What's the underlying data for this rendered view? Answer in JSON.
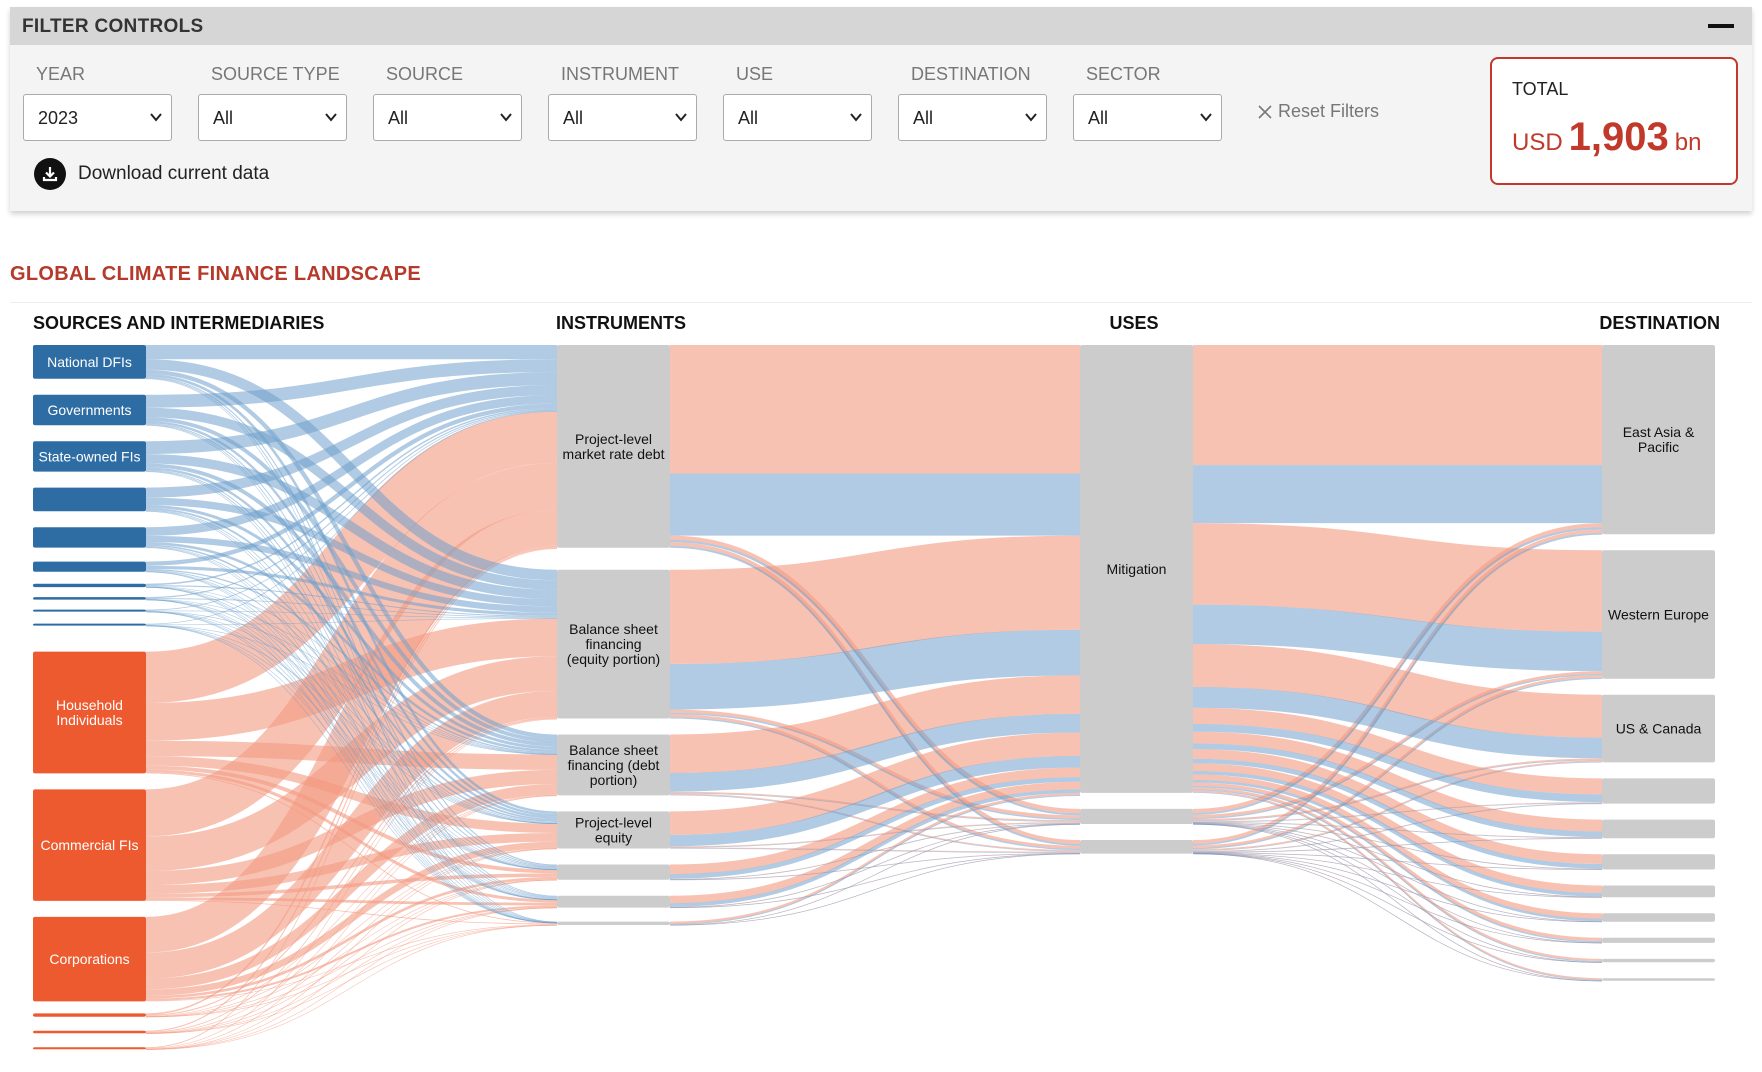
{
  "filters": {
    "header_title": "FILTER CONTROLS",
    "fields": [
      {
        "label": "YEAR",
        "value": "2023"
      },
      {
        "label": "SOURCE TYPE",
        "value": "All"
      },
      {
        "label": "SOURCE",
        "value": "All"
      },
      {
        "label": "INSTRUMENT",
        "value": "All"
      },
      {
        "label": "USE",
        "value": "All"
      },
      {
        "label": "DESTINATION",
        "value": "All"
      },
      {
        "label": "SECTOR",
        "value": "All"
      }
    ],
    "reset_label": "Reset Filters",
    "download_label": "Download current data"
  },
  "total": {
    "label": "TOTAL",
    "currency": "USD",
    "value": "1,903",
    "unit": "bn"
  },
  "chart_title": "GLOBAL CLIMATE FINANCE LANDSCAPE",
  "colors": {
    "public": "#2e6da4",
    "public_link": "#6fa0cc",
    "private": "#ee5a2f",
    "private_link": "#f49a80",
    "node": "#cccccc",
    "accent": "#c0392b"
  },
  "chart_data": {
    "type": "sankey",
    "columns": [
      {
        "title": "SOURCES AND INTERMEDIARIES"
      },
      {
        "title": "INSTRUMENTS"
      },
      {
        "title": "USES"
      },
      {
        "title": "DESTINATION"
      }
    ],
    "nodes": {
      "sources": [
        {
          "label": "National DFIs",
          "value": 20,
          "type": "public"
        },
        {
          "label": "Governments",
          "value": 18,
          "type": "public"
        },
        {
          "label": "State-owned FIs",
          "value": 18,
          "type": "public"
        },
        {
          "label": "",
          "value": 14,
          "type": "public"
        },
        {
          "label": "",
          "value": 12,
          "type": "public"
        },
        {
          "label": "",
          "value": 6,
          "type": "public"
        },
        {
          "label": "",
          "value": 2,
          "type": "public"
        },
        {
          "label": "",
          "value": 1.5,
          "type": "public"
        },
        {
          "label": "",
          "value": 1,
          "type": "public"
        },
        {
          "label": "",
          "value": 0.6,
          "type": "public"
        },
        {
          "label": "Household Individuals",
          "value": 72,
          "type": "private"
        },
        {
          "label": "Commercial FIs",
          "value": 66,
          "type": "private"
        },
        {
          "label": "Corporations",
          "value": 50,
          "type": "private"
        },
        {
          "label": "",
          "value": 2,
          "type": "private"
        },
        {
          "label": "",
          "value": 1.5,
          "type": "private"
        },
        {
          "label": "",
          "value": 1,
          "type": "private"
        }
      ],
      "instruments": [
        {
          "label": "Project-level market rate debt",
          "value": 120
        },
        {
          "label": "Balance sheet financing (equity portion)",
          "value": 88
        },
        {
          "label": "Balance sheet financing (debt portion)",
          "value": 36
        },
        {
          "label": "Project-level equity",
          "value": 22
        },
        {
          "label": "",
          "value": 9
        },
        {
          "label": "",
          "value": 7
        },
        {
          "label": "",
          "value": 2
        }
      ],
      "uses": [
        {
          "label": "Mitigation",
          "value": 265
        },
        {
          "label": "",
          "value": 9
        },
        {
          "label": "",
          "value": 8
        }
      ],
      "destinations": [
        {
          "label": "East Asia & Pacific",
          "value": 112
        },
        {
          "label": "Western Europe",
          "value": 76
        },
        {
          "label": "US & Canada",
          "value": 40
        },
        {
          "label": "",
          "value": 15
        },
        {
          "label": "",
          "value": 11
        },
        {
          "label": "",
          "value": 9
        },
        {
          "label": "",
          "value": 7
        },
        {
          "label": "",
          "value": 5
        },
        {
          "label": "",
          "value": 3
        },
        {
          "label": "",
          "value": 2
        },
        {
          "label": "",
          "value": 1.5
        }
      ]
    }
  }
}
